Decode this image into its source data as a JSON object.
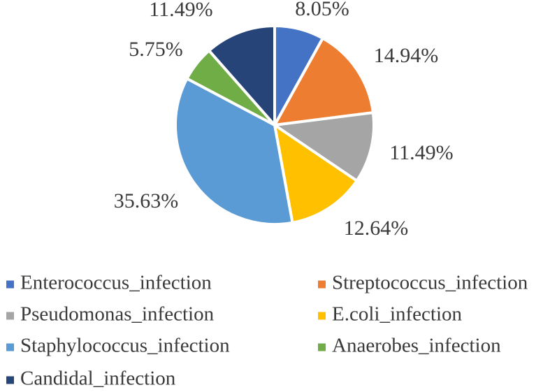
{
  "chart_data": {
    "type": "pie",
    "title": "",
    "start_angle_deg": 0,
    "direction": "clockwise",
    "legend_position": "bottom",
    "slices": [
      {
        "label": "Enterococcus_infection",
        "value": 8.05,
        "display": "8.05%",
        "color": "#4472C4"
      },
      {
        "label": "Streptococcus_infection",
        "value": 14.94,
        "display": "14.94%",
        "color": "#ED7D31"
      },
      {
        "label": "Pseudomonas_infection",
        "value": 11.49,
        "display": "11.49%",
        "color": "#A5A5A5"
      },
      {
        "label": "E.coli_infection",
        "value": 12.64,
        "display": "12.64%",
        "color": "#FFC000"
      },
      {
        "label": "Staphylococcus_infection",
        "value": 35.63,
        "display": "35.63%",
        "color": "#5B9BD5"
      },
      {
        "label": "Anaerobes_infection",
        "value": 5.75,
        "display": "5.75%",
        "color": "#70AD47"
      },
      {
        "label": "Candidal_infection",
        "value": 11.49,
        "display": "11.49%",
        "color": "#264478"
      }
    ]
  }
}
